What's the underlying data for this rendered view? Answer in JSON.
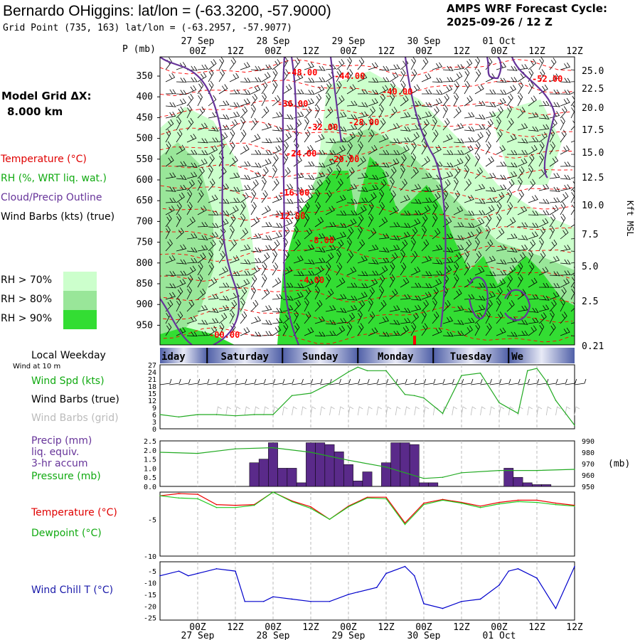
{
  "header": {
    "title": "Bernardo OHiggins:  lat/lon = (-63.3200, -57.9000)",
    "subtitle": "Grid Point (735, 163) lat/lon = (-63.2957, -57.9077)",
    "cycle_label": "AMPS WRF Forecast Cycle:",
    "cycle_value": "2025-09-26 / 12  Z"
  },
  "left": {
    "pressure_axis_label": "P (mb)",
    "model_grid": "Model Grid ΔX:",
    "model_grid_value": "8.000 km",
    "legend_temperature": "Temperature (°C)",
    "legend_rh": "RH (%, WRT liq. wat.)",
    "legend_cloud": "Cloud/Precip Outline",
    "legend_wind": "Wind Barbs (kts) (true)",
    "rh_levels": [
      "RH > 70%",
      "RH > 80%",
      "RH > 90%"
    ],
    "local_weekday": "Local Weekday",
    "wind_at_10m": "Wind at 10 m",
    "wind_spd": "Wind Spd (kts)",
    "wind_barbs_true": "Wind Barbs (true)",
    "wind_barbs_grid": "Wind Barbs (grid)",
    "precip_1": "Precip (mm)",
    "precip_2": "liq. equiv.",
    "precip_3": "3-hr accum",
    "pressure": "Pressure (mb)",
    "temperature": "Temperature (°C)",
    "dewpoint": "Dewpoint (°C)",
    "wind_chill": "Wind Chill T (°C)"
  },
  "colors": {
    "rh70": "#ccffcc",
    "rh80": "#99e699",
    "rh90": "#33dd33",
    "temp_line": "#ff0000",
    "dew_line": "#22cc22",
    "cloud_outline": "#663399",
    "precip_bar": "#5a2a8a",
    "wind_chill": "#0000cc",
    "weekday_band": "#5060a8"
  },
  "time_axis": {
    "ticks": [
      "00Z",
      "12Z",
      "00Z",
      "12Z",
      "00Z",
      "12Z",
      "00Z",
      "12Z",
      "00Z",
      "12Z"
    ],
    "dates": [
      "27 Sep",
      "28 Sep",
      "29 Sep",
      "30 Sep",
      "01 Oct"
    ],
    "weekdays": [
      "iday",
      "Saturday",
      "Sunday",
      "Monday",
      "Tuesday",
      "We"
    ]
  },
  "chart_data": [
    {
      "type": "heatmap",
      "name": "cross-section",
      "y_ticks_left": [
        "350",
        "400",
        "450",
        "500",
        "550",
        "600",
        "650",
        "700",
        "750",
        "800",
        "850",
        "900",
        "950"
      ],
      "y_ticks_right": [
        "25.0",
        "22.5",
        "20.0",
        "17.5",
        "15.0",
        "12.5",
        "10.0",
        "7.5",
        "5.0",
        "2.5",
        "0.21"
      ],
      "y_right_label": "Kft MSL",
      "temperature_contour_labels": [
        "-48.00",
        "-44.00",
        "-40.00",
        "-52.00",
        "-36.00",
        "-32.00",
        "-28.00",
        "-24.00",
        "-20.00",
        "-16.00",
        "-12.00",
        "-8.00",
        "-4.00",
        "-00.00"
      ]
    },
    {
      "type": "line",
      "name": "wind speed",
      "y_ticks": [
        "27",
        "24",
        "21",
        "18",
        "15",
        "12",
        "9",
        "6",
        "3",
        "0"
      ],
      "ylim": [
        0,
        27
      ],
      "x_hours": [
        -12,
        -6,
        0,
        6,
        12,
        18,
        24,
        30,
        36,
        42,
        48,
        51,
        54,
        60,
        66,
        69,
        72,
        78,
        84,
        90,
        96,
        102,
        105,
        108,
        111,
        114,
        120
      ],
      "values": [
        6,
        5,
        6,
        6,
        5.5,
        6,
        6,
        14,
        15,
        19,
        24,
        26,
        24.5,
        24.5,
        14.5,
        14,
        13,
        6.5,
        22.5,
        23.5,
        11,
        6.5,
        24.5,
        25.5,
        20,
        12,
        1.5
      ]
    },
    {
      "type": "bar",
      "name": "precip and pressure",
      "y_ticks_left": [
        "2.5",
        "2.0",
        "1.5",
        "1.0",
        "0.5",
        "0.0"
      ],
      "y_ticks_right": [
        "990",
        "980",
        "970",
        "960",
        "950"
      ],
      "right_unit": "(mb)",
      "ylim": [
        0,
        2.5
      ],
      "precip_hours": [
        18,
        21,
        24,
        27,
        30,
        33,
        36,
        39,
        42,
        45,
        48,
        51,
        54,
        57,
        60,
        63,
        66,
        69,
        72,
        75,
        78,
        81,
        84,
        87,
        90,
        93,
        96,
        99,
        102,
        105,
        108,
        111,
        114,
        117
      ],
      "precip_values": [
        1.3,
        1.5,
        2.4,
        1.0,
        1.0,
        0.2,
        2.4,
        2.4,
        2.3,
        1.9,
        1.2,
        0.3,
        0.8,
        0.0,
        1.3,
        2.4,
        2.4,
        2.3,
        0.2,
        0.2,
        0.0,
        0.0,
        0.0,
        0.0,
        0.0,
        0.0,
        0.0,
        1.0,
        0.5,
        0.2,
        0.1,
        0.1,
        0.0,
        0.0
      ],
      "pressure_hours": [
        -12,
        0,
        12,
        24,
        36,
        48,
        60,
        66,
        72,
        78,
        84,
        96,
        108,
        120
      ],
      "pressure_values": [
        980,
        979,
        983,
        984,
        980,
        973,
        967,
        962,
        957,
        958,
        962,
        964,
        964,
        965
      ],
      "pressure_ylim": [
        950,
        990
      ]
    },
    {
      "type": "line",
      "name": "temperature and dewpoint",
      "y_ticks": [
        "-5",
        "-10"
      ],
      "ylim": [
        -10,
        -1.3
      ],
      "x_hours": [
        -12,
        -6,
        0,
        6,
        12,
        18,
        24,
        30,
        36,
        42,
        48,
        54,
        60,
        66,
        72,
        78,
        84,
        90,
        96,
        102,
        108,
        114,
        120
      ],
      "temperature": [
        -1.8,
        -1.5,
        -1.6,
        -3.0,
        -3.1,
        -3.0,
        -1.3,
        -2.5,
        -3.3,
        -5.0,
        -3.2,
        -2.0,
        -2.0,
        -5.5,
        -2.8,
        -2.3,
        -2.7,
        -3.2,
        -2.7,
        -2.4,
        -2.4,
        -2.8,
        -3.1
      ],
      "dewpoint": [
        -1.8,
        -2.1,
        -2.2,
        -3.4,
        -3.4,
        -3.1,
        -1.3,
        -2.6,
        -3.5,
        -5.0,
        -3.3,
        -2.1,
        -2.2,
        -5.7,
        -3.0,
        -2.4,
        -2.8,
        -3.4,
        -2.9,
        -2.6,
        -2.7,
        -3.0,
        -3.2
      ]
    },
    {
      "type": "line",
      "name": "wind chill",
      "y_ticks": [
        "-5",
        "-10",
        "-15",
        "-20",
        "-25"
      ],
      "ylim": [
        -26,
        -1
      ],
      "x_hours": [
        -12,
        -6,
        -3,
        0,
        6,
        12,
        15,
        21,
        24,
        30,
        36,
        42,
        48,
        51,
        57,
        60,
        66,
        69,
        72,
        78,
        84,
        90,
        96,
        99,
        102,
        108,
        114,
        120
      ],
      "values": [
        -7,
        -5,
        -7,
        -6,
        -4,
        -5,
        -18,
        -18,
        -16,
        -17,
        -18,
        -18,
        -15,
        -14,
        -12,
        -6,
        -3,
        -7,
        -19,
        -21,
        -18,
        -17,
        -11,
        -5,
        -4,
        -8,
        -21,
        -3
      ]
    }
  ]
}
